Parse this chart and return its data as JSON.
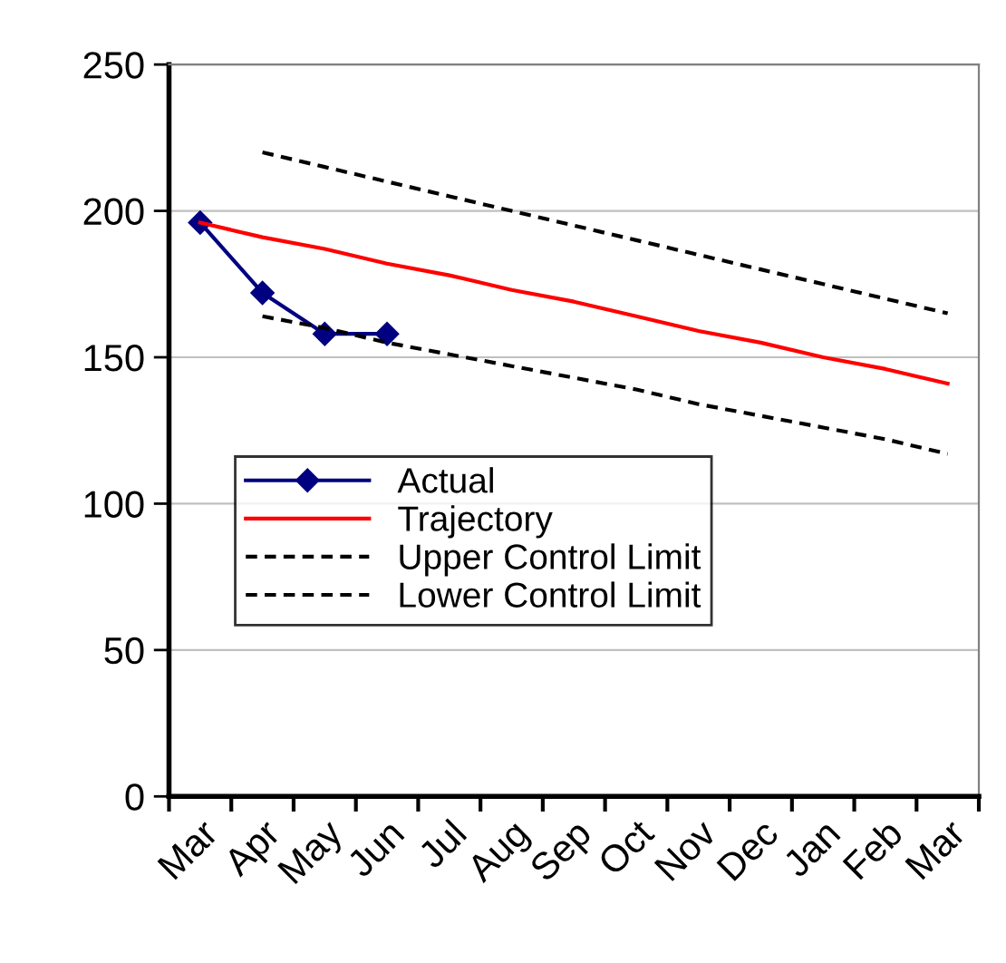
{
  "chart_data": {
    "type": "line",
    "categories": [
      "Mar",
      "Apr",
      "May",
      "Jun",
      "Jul",
      "Aug",
      "Sep",
      "Oct",
      "Nov",
      "Dec",
      "Jan",
      "Feb",
      "Mar"
    ],
    "series": [
      {
        "name": "Actual",
        "color": "#000080",
        "marker": "diamond",
        "line_style": "solid",
        "values": [
          196,
          172,
          158,
          158,
          null,
          null,
          null,
          null,
          null,
          null,
          null,
          null,
          null
        ]
      },
      {
        "name": "Trajectory",
        "color": "#ff0000",
        "marker": "none",
        "line_style": "solid",
        "values": [
          196,
          191,
          187,
          182,
          178,
          173,
          169,
          164,
          159,
          155,
          150,
          146,
          141
        ]
      },
      {
        "name": "Upper Control Limit",
        "color": "#000000",
        "marker": "none",
        "line_style": "dashed",
        "values": [
          null,
          220,
          215,
          210,
          205,
          200,
          195,
          190,
          185,
          180,
          175,
          170,
          165
        ]
      },
      {
        "name": "Lower Control Limit",
        "color": "#000000",
        "marker": "none",
        "line_style": "dashed",
        "values": [
          null,
          164,
          160,
          155,
          151,
          147,
          143,
          139,
          134,
          130,
          126,
          122,
          117
        ]
      }
    ],
    "ylim": [
      0,
      250
    ],
    "yticks": [
      0,
      50,
      100,
      150,
      200,
      250
    ],
    "grid": "y",
    "legend": "bottom left"
  }
}
